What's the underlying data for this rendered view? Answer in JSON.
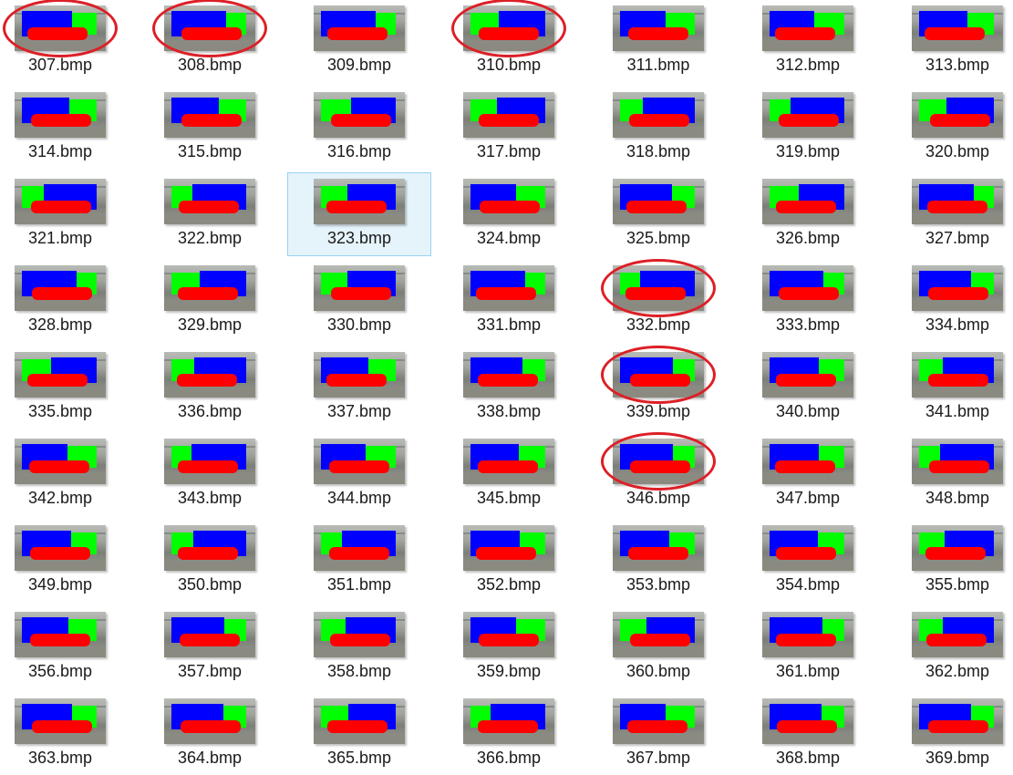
{
  "files": [
    "307.bmp",
    "308.bmp",
    "309.bmp",
    "310.bmp",
    "311.bmp",
    "312.bmp",
    "313.bmp",
    "314.bmp",
    "315.bmp",
    "316.bmp",
    "317.bmp",
    "318.bmp",
    "319.bmp",
    "320.bmp",
    "321.bmp",
    "322.bmp",
    "323.bmp",
    "324.bmp",
    "325.bmp",
    "326.bmp",
    "327.bmp",
    "328.bmp",
    "329.bmp",
    "330.bmp",
    "331.bmp",
    "332.bmp",
    "333.bmp",
    "334.bmp",
    "335.bmp",
    "336.bmp",
    "337.bmp",
    "338.bmp",
    "339.bmp",
    "340.bmp",
    "341.bmp",
    "342.bmp",
    "343.bmp",
    "344.bmp",
    "345.bmp",
    "346.bmp",
    "347.bmp",
    "348.bmp",
    "349.bmp",
    "350.bmp",
    "351.bmp",
    "352.bmp",
    "353.bmp",
    "354.bmp",
    "355.bmp",
    "356.bmp",
    "357.bmp",
    "358.bmp",
    "359.bmp",
    "360.bmp",
    "361.bmp",
    "362.bmp",
    "363.bmp",
    "364.bmp",
    "365.bmp",
    "366.bmp",
    "367.bmp",
    "368.bmp",
    "369.bmp"
  ],
  "selected_file": "323.bmp",
  "circled_files": [
    "307.bmp",
    "308.bmp",
    "310.bmp",
    "332.bmp",
    "339.bmp",
    "346.bmp"
  ],
  "colors": {
    "cab": "#00ff00",
    "body": "#0000ff",
    "base": "#ff0000",
    "annotation_ring": "#dd1f26",
    "selection_bg": "#e5f3fb",
    "selection_border": "#99d1ef"
  }
}
